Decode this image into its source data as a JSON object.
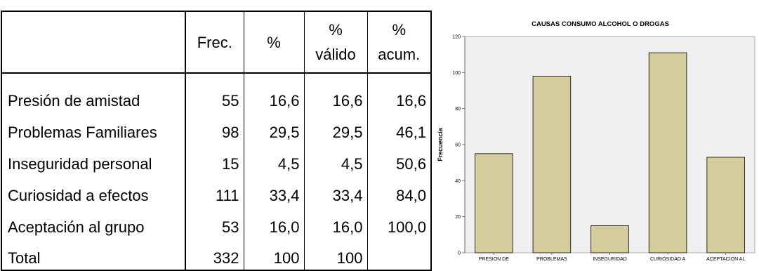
{
  "table": {
    "headers": [
      "",
      "Frec.",
      "%",
      "% válido",
      "% acum."
    ],
    "rows": [
      {
        "label": "Presión de amistad",
        "frec": "55",
        "pct": "16,6",
        "valido": "16,6",
        "acum": "16,6"
      },
      {
        "label": "Problemas Familiares",
        "frec": "98",
        "pct": "29,5",
        "valido": "29,5",
        "acum": "46,1"
      },
      {
        "label": "Inseguridad personal",
        "frec": "15",
        "pct": "4,5",
        "valido": "4,5",
        "acum": "50,6"
      },
      {
        "label": "Curiosidad a efectos",
        "frec": "111",
        "pct": "33,4",
        "valido": "33,4",
        "acum": "84,0"
      },
      {
        "label": "Aceptación al grupo",
        "frec": "53",
        "pct": "16,0",
        "valido": "16,0",
        "acum": "100,0"
      },
      {
        "label": "Total",
        "frec": "332",
        "pct": "100",
        "valido": "100",
        "acum": ""
      }
    ]
  },
  "chart_data": {
    "type": "bar",
    "title": "CAUSAS CONSUMO ALCOHOL O DROGAS",
    "xlabel": "",
    "ylabel": "Frecuencia",
    "categories": [
      "PRESION DE",
      "PROBLEMAS",
      "INSEGURIDAD",
      "CURIOSIDAD A",
      "ACEPTACION AL"
    ],
    "values": [
      55,
      98,
      15,
      111,
      53
    ],
    "ylim": [
      0,
      120
    ],
    "yticks": [
      0,
      20,
      40,
      60,
      80,
      100,
      120
    ],
    "grid": false,
    "bar_color": "#d4cc9a",
    "bar_edge_color": "#000000",
    "plot_bg": "#f0f0f0"
  }
}
